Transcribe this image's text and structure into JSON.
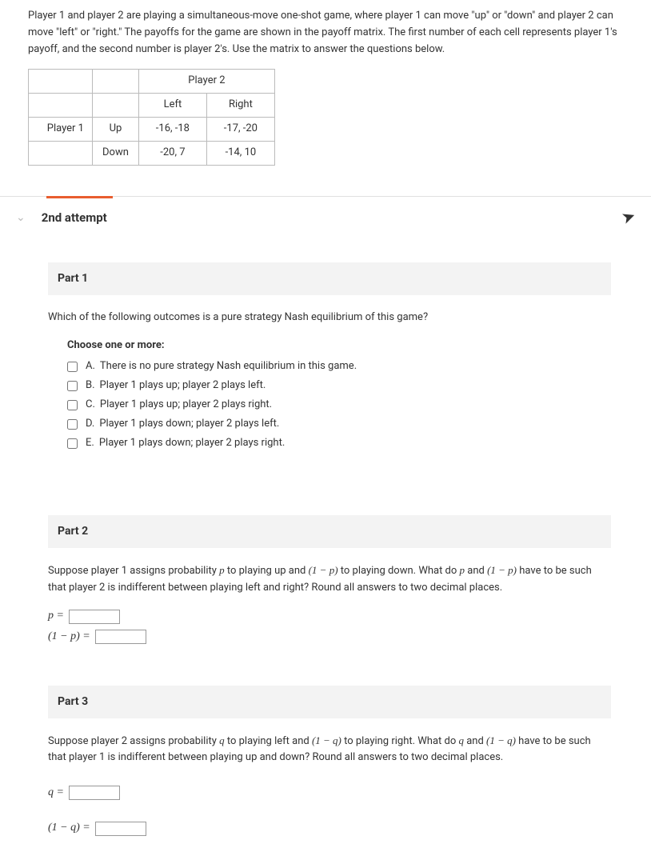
{
  "intro": {
    "text": "Player 1 and player 2 are playing a simultaneous-move one-shot game, where player 1 can move \"up\" or \"down\" and player 2 can move \"left\" or \"right.\" The payoffs for the game are shown in the payoff matrix. The first number of each cell represents player 1's payoff, and the second number is player 2's. Use the matrix to answer the questions below."
  },
  "payoff": {
    "col_player": "Player 2",
    "row_player": "Player 1",
    "cols": [
      "Left",
      "Right"
    ],
    "rows": [
      "Up",
      "Down"
    ],
    "cells": [
      [
        "-16, -18",
        "-17, -20"
      ],
      [
        "-20, 7",
        "-14, 10"
      ]
    ]
  },
  "attempt": {
    "label": "2nd attempt"
  },
  "part1": {
    "title": "Part 1",
    "question": "Which of the following outcomes is a pure strategy Nash equilibrium of this game?",
    "choose": "Choose one or more:",
    "options": [
      {
        "letter": "A.",
        "text": "There is no pure strategy Nash equilibrium in this game."
      },
      {
        "letter": "B.",
        "text": "Player 1 plays up; player 2 plays left."
      },
      {
        "letter": "C.",
        "text": "Player 1 plays up; player 2 plays right."
      },
      {
        "letter": "D.",
        "text": "Player 1 plays down; player 2 plays left."
      },
      {
        "letter": "E.",
        "text": "Player 1 plays down; player 2 plays right."
      }
    ]
  },
  "part2": {
    "title": "Part 2",
    "q_pre": "Suppose player 1 assigns probability ",
    "q_mid1": " to playing up and ",
    "q_mid2": " to playing down. What do ",
    "q_mid3": " and ",
    "q_end": " have to be such that player 2 is indifferent between playing left and right? Round all answers to two decimal places.",
    "sym_p": "p",
    "sym_1mp": "(1 − p)",
    "eq_p": "p =",
    "eq_1mp": "(1 − p) ="
  },
  "part3": {
    "title": "Part 3",
    "q_pre": "Suppose player 2 assigns probability ",
    "q_mid1": " to playing left and ",
    "q_mid2": " to playing right. What do ",
    "q_mid3": " and ",
    "q_end": " have to be such that player 1 is indifferent between playing up and down? Round all answers to two decimal places.",
    "sym_q": "q",
    "sym_1mq": "(1 − q)",
    "eq_q": "q =",
    "eq_1mq": "(1 − q) ="
  }
}
